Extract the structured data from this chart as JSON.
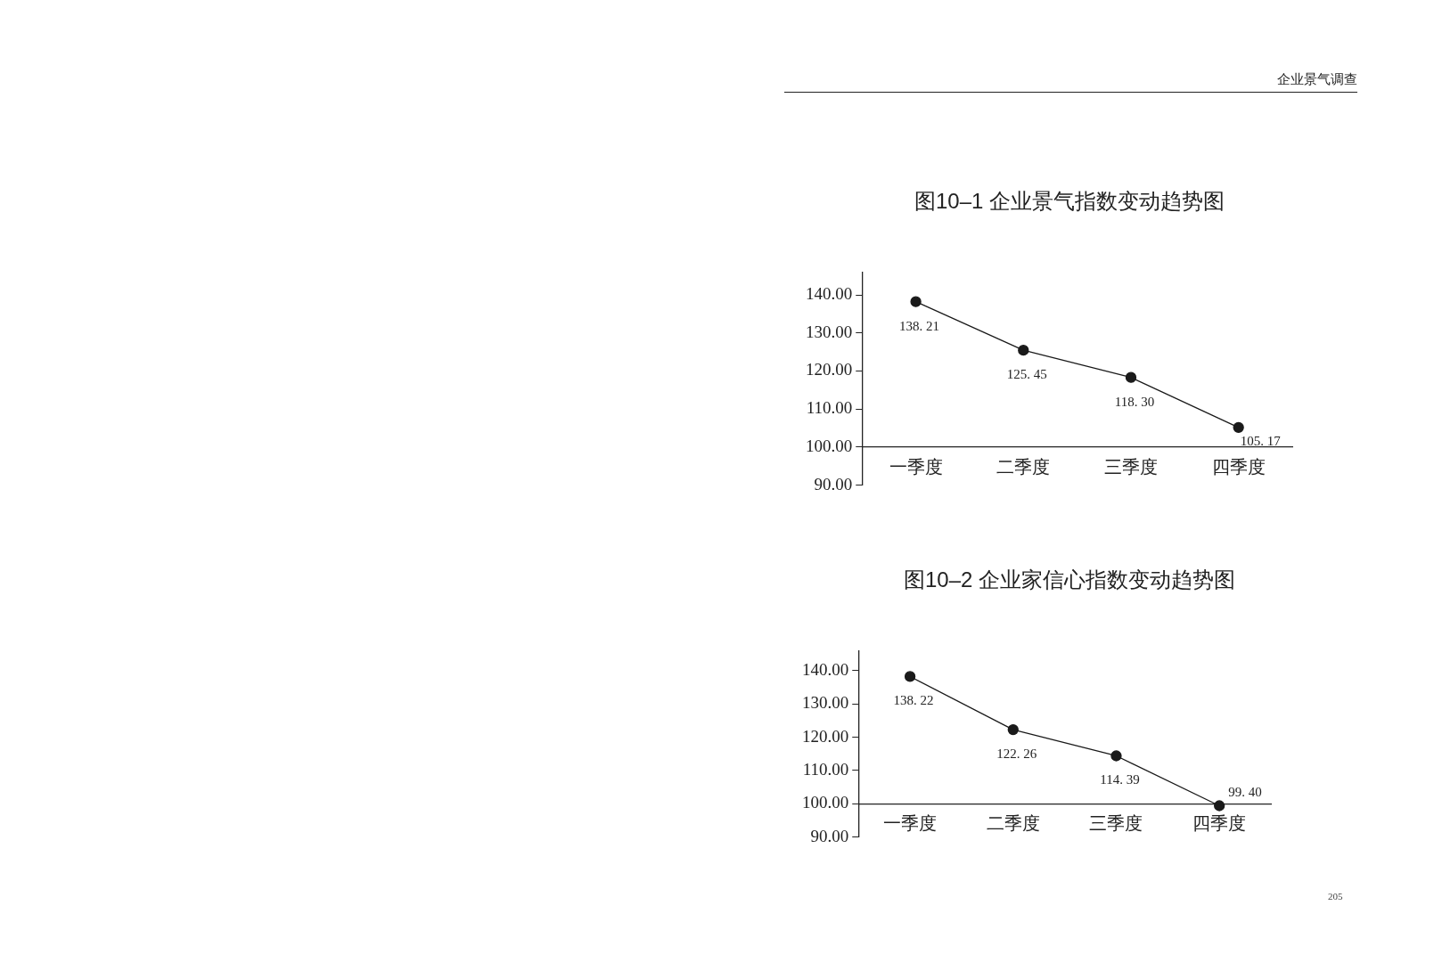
{
  "chart_data": [
    {
      "type": "line",
      "title": "图10–1 企业景气指数变动趋势图",
      "categories": [
        "一季度",
        "二季度",
        "三季度",
        "四季度"
      ],
      "values": [
        138.21,
        125.45,
        118.3,
        105.17
      ],
      "value_labels": [
        "138. 21",
        "125. 45",
        "118. 30",
        "105. 17"
      ],
      "color": "#1a1a1a",
      "ylim": [
        90,
        146
      ],
      "yticks": [
        {
          "value": 90,
          "label": "90.00"
        },
        {
          "value": 100,
          "label": "100.00"
        },
        {
          "value": 110,
          "label": "110.00"
        },
        {
          "value": 120,
          "label": "120.00"
        },
        {
          "value": 130,
          "label": "130.00"
        },
        {
          "value": 140,
          "label": "140.00"
        }
      ],
      "marker": "circle",
      "line_style": "solid",
      "annotations": [
        "企业景气调查"
      ]
    },
    {
      "type": "line",
      "title": "图10–2 企业家信心指数变动趋势图",
      "categories": [
        "一季度",
        "二季度",
        "三季度",
        "四季度"
      ],
      "values": [
        138.22,
        122.26,
        114.39,
        99.4
      ],
      "value_labels": [
        "138. 22",
        "122. 26",
        "114. 39",
        "99. 40"
      ],
      "color": "#1a1a1a",
      "ylim": [
        90,
        146
      ],
      "yticks": [
        {
          "value": 90,
          "label": "90.00"
        },
        {
          "value": 100,
          "label": "100.00"
        },
        {
          "value": 110,
          "label": "110.00"
        },
        {
          "value": 120,
          "label": "120.00"
        },
        {
          "value": 130,
          "label": "130.00"
        },
        {
          "value": 140,
          "label": "140.00"
        }
      ],
      "marker": "circle",
      "line_style": "solid",
      "annotations": [
        "205"
      ]
    }
  ]
}
